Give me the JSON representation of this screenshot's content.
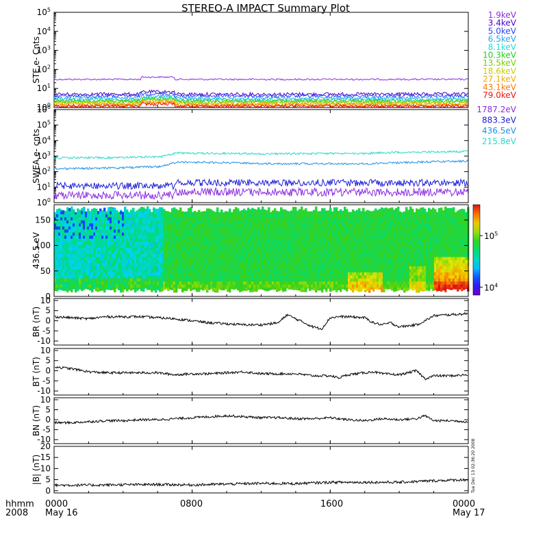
{
  "title": "STEREO-A IMPACT Summary Plot",
  "footer": {
    "time_label": "hhmm",
    "year_label": "2008",
    "ticks": [
      "0000",
      "0800",
      "1600",
      "0000"
    ],
    "date_start": "May 16",
    "date_end": "May 17"
  },
  "timestamp": "Tue Dec 13 02:36:20 2008",
  "colors": {
    "ste_channels": [
      "#8a2be2",
      "#4b00c8",
      "#2244ff",
      "#22a8ee",
      "#22dddd",
      "#22cc22",
      "#7acc00",
      "#cccc00",
      "#eeaa00",
      "#ff7700",
      "#ee1111"
    ],
    "swea_channels": [
      "#8a2be2",
      "#1a1ad6",
      "#1f8fe6",
      "#2ad7c8"
    ],
    "line": "#000000"
  },
  "chart_data": [
    {
      "type": "line",
      "panel": "STE",
      "ylabel": "STE e- Cnts",
      "yscale": "log",
      "ylim": [
        1,
        100000
      ],
      "y_ticks": [
        "10^0",
        "10^1",
        "10^2",
        "10^3",
        "10^4",
        "10^5"
      ],
      "xlim_hours": [
        0,
        24
      ],
      "series": [
        {
          "name": "1.9keV",
          "level": 30
        },
        {
          "name": "3.4keV",
          "level": 5
        },
        {
          "name": "5.0keV",
          "level": 4
        },
        {
          "name": "6.5keV",
          "level": 3
        },
        {
          "name": "8.1keV",
          "level": 2.5
        },
        {
          "name": "10.3keV",
          "level": 2.2
        },
        {
          "name": "13.5keV",
          "level": 2
        },
        {
          "name": "18.6keV",
          "level": 1.7
        },
        {
          "name": "27.1keV",
          "level": 1.5
        },
        {
          "name": "43.1keV",
          "level": 1.3
        },
        {
          "name": "79.0keV",
          "level": 1.15
        }
      ]
    },
    {
      "type": "line",
      "panel": "SWEA",
      "ylabel": "SWEA e- cnts",
      "yscale": "log",
      "ylim": [
        1,
        1000000
      ],
      "y_ticks": [
        "10^0",
        "10^1",
        "10^2",
        "10^3",
        "10^4",
        "10^5",
        "10^6"
      ],
      "xlim_hours": [
        0,
        24
      ],
      "series": [
        {
          "name": "1787.2eV",
          "level": 3
        },
        {
          "name": "883.3eV",
          "level": 12
        },
        {
          "name": "436.5eV",
          "x": [
            0,
            3.5,
            6.2,
            7.2,
            12,
            18,
            20,
            24
          ],
          "y": [
            150,
            170,
            210,
            420,
            330,
            320,
            380,
            480
          ]
        },
        {
          "name": "215.8eV",
          "x": [
            0,
            3.5,
            6.2,
            7.2,
            12,
            18,
            20,
            24
          ],
          "y": [
            750,
            800,
            900,
            1600,
            1400,
            1500,
            1750,
            2000
          ]
        }
      ]
    },
    {
      "type": "heatmap",
      "panel": "pitch-angle",
      "ylabel": "436.5 eV",
      "ylim": [
        0,
        180
      ],
      "y_ticks": [
        "0",
        "50",
        "100",
        "150"
      ],
      "colorbar_ticks": [
        "10^4",
        "10^5"
      ],
      "colorbar_range": [
        7000,
        400000
      ],
      "colorscale": "rainbow",
      "xlim_hours": [
        0,
        24
      ]
    },
    {
      "type": "line",
      "panel": "BR",
      "ylabel": "BR (nT)",
      "ylim": [
        -12,
        11
      ],
      "y_ticks": [
        "10",
        "5",
        "0",
        "-5",
        "-10"
      ],
      "x": [
        0,
        1,
        2,
        3,
        4,
        5,
        6,
        7,
        8,
        9,
        10,
        11,
        12,
        13,
        13.5,
        14,
        15,
        15.5,
        16,
        16.5,
        17,
        18,
        18.5,
        19,
        19.5,
        20,
        21,
        21.5,
        22,
        23,
        24
      ],
      "y": [
        2,
        1.5,
        1,
        2,
        2,
        2,
        1.5,
        1,
        0,
        -1,
        -1.5,
        -2,
        -2,
        -1,
        3,
        1,
        -3,
        -4,
        1.5,
        2,
        2,
        1.5,
        -1,
        -2,
        -1,
        -3,
        -2,
        0,
        2.5,
        3,
        3.5
      ]
    },
    {
      "type": "line",
      "panel": "BT",
      "ylabel": "BT (nT)",
      "ylim": [
        -12,
        11
      ],
      "y_ticks": [
        "10",
        "5",
        "0",
        "-5",
        "-10"
      ],
      "x": [
        0,
        1,
        2,
        3,
        4,
        5,
        6,
        7,
        8,
        9,
        10,
        11,
        12,
        13,
        14,
        15,
        16,
        16.5,
        17,
        18,
        18.5,
        19,
        20,
        20.5,
        21,
        21.5,
        22,
        23,
        24
      ],
      "y": [
        2,
        1,
        -0.5,
        -1,
        -1,
        -1,
        -1,
        -2,
        -1.5,
        -1.5,
        -1,
        -0.5,
        -1.5,
        -1.5,
        -1.5,
        -2.5,
        -2.5,
        -3.5,
        -2,
        -1,
        -0.5,
        -1.5,
        -2,
        -1,
        0,
        -4,
        -2.5,
        -2.5,
        -2
      ]
    },
    {
      "type": "line",
      "panel": "BN",
      "ylabel": "BN (nT)",
      "ylim": [
        -12,
        11
      ],
      "y_ticks": [
        "10",
        "5",
        "0",
        "-5",
        "-10"
      ],
      "x": [
        0,
        1,
        2,
        3,
        4,
        5,
        6,
        7,
        8,
        9,
        10,
        11,
        12,
        13,
        14,
        15,
        16,
        17,
        18,
        19,
        20,
        21,
        21.5,
        22,
        23,
        24
      ],
      "y": [
        -1.5,
        -1.5,
        -1,
        -0.5,
        -0.5,
        0,
        0,
        0.5,
        1,
        1.5,
        2,
        1.5,
        1,
        1,
        0.5,
        0.5,
        1,
        0,
        -0.5,
        0.5,
        0,
        0.5,
        2,
        -0.5,
        -0.5,
        -1
      ]
    },
    {
      "type": "line",
      "panel": "|B|",
      "ylabel": "|B| (nT)",
      "ylim": [
        -1,
        20
      ],
      "y_ticks": [
        "20",
        "15",
        "10",
        "5",
        "0"
      ],
      "x": [
        0,
        2,
        4,
        6,
        8,
        10,
        12,
        14,
        16,
        18,
        20,
        22,
        24
      ],
      "y": [
        2.5,
        2.5,
        2.7,
        2.8,
        2.6,
        3,
        3.3,
        3.2,
        3.8,
        3.8,
        3.8,
        4.5,
        5
      ]
    }
  ]
}
